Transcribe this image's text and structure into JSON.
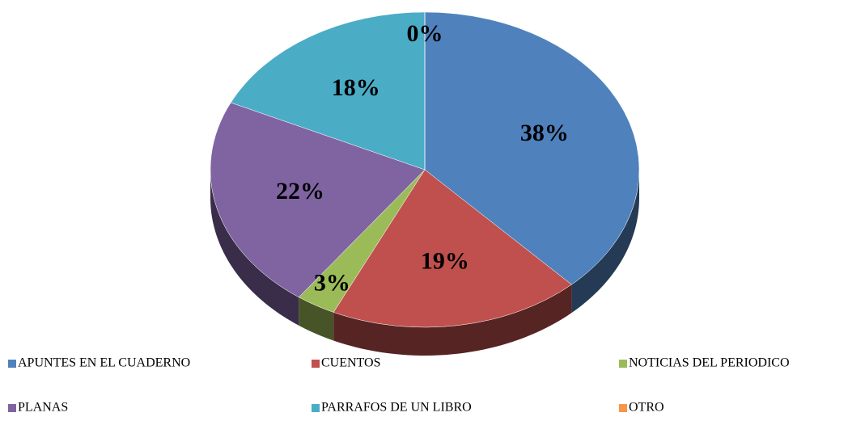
{
  "chart_data": {
    "type": "pie",
    "categories": [
      "APUNTES EN EL CUADERNO",
      "CUENTOS",
      "NOTICIAS DEL PERIODICO",
      "PLANAS",
      "PARRAFOS DE UN LIBRO",
      "OTRO"
    ],
    "values": [
      38,
      19,
      3,
      22,
      18,
      0
    ],
    "value_labels": [
      "38%",
      "19%",
      "3%",
      "22%",
      "18%",
      "0%"
    ],
    "colors": [
      "#4f81bd",
      "#c0504d",
      "#9bbb59",
      "#8064a2",
      "#4bacc6",
      "#f79646"
    ],
    "legend": "bottom"
  }
}
